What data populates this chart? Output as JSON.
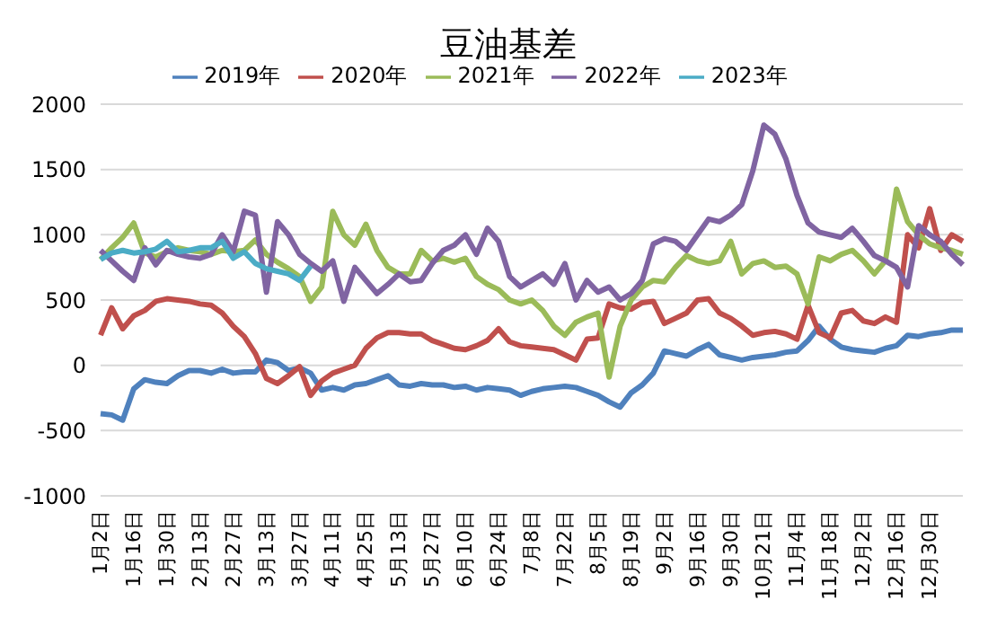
{
  "chart_data": {
    "type": "line",
    "title": "豆油基差",
    "categories": [
      "1月2日",
      null,
      null,
      "1月16日",
      null,
      null,
      "1月30日",
      null,
      null,
      "2月13日",
      null,
      null,
      "2月27日",
      null,
      null,
      "3月13日",
      null,
      null,
      "3月27日",
      null,
      null,
      "4月11日",
      null,
      null,
      "4月25日",
      null,
      null,
      "5月13日",
      null,
      null,
      "5月27日",
      null,
      null,
      "6月10日",
      null,
      null,
      "6月24日",
      null,
      null,
      "7月8日",
      null,
      null,
      "7月22日",
      null,
      null,
      "8月5日",
      null,
      null,
      "8月19日",
      null,
      null,
      "9月2日",
      null,
      null,
      "9月16日",
      null,
      null,
      "9月30日",
      null,
      null,
      "10月21日",
      null,
      null,
      "11月4日",
      null,
      null,
      "11月18日",
      null,
      null,
      "12月2日",
      null,
      null,
      "12月16日",
      null,
      null,
      "12月30日",
      null,
      null,
      null
    ],
    "series": [
      {
        "name": "2019年",
        "color": "#4f81bd",
        "values": [
          -370,
          -380,
          -420,
          -180,
          -110,
          -130,
          -140,
          -80,
          -40,
          -40,
          -60,
          -30,
          -60,
          -50,
          -50,
          40,
          20,
          -40,
          -20,
          -60,
          -190,
          -170,
          -190,
          -150,
          -140,
          -110,
          -80,
          -150,
          -160,
          -140,
          -150,
          -150,
          -170,
          -160,
          -190,
          -170,
          -180,
          -190,
          -230,
          -200,
          -180,
          -170,
          -160,
          -170,
          -200,
          -230,
          -280,
          -320,
          -210,
          -150,
          -60,
          110,
          90,
          70,
          120,
          160,
          80,
          60,
          40,
          60,
          70,
          80,
          100,
          110,
          190,
          300,
          200,
          140,
          120,
          110,
          100,
          130,
          150,
          230,
          220,
          240,
          250,
          270,
          270
        ]
      },
      {
        "name": "2020年",
        "color": "#c0504d",
        "values": [
          230,
          440,
          280,
          380,
          420,
          490,
          510,
          500,
          490,
          470,
          460,
          400,
          300,
          220,
          90,
          -100,
          -140,
          -80,
          -10,
          -230,
          -120,
          -60,
          -30,
          0,
          130,
          210,
          250,
          250,
          240,
          240,
          190,
          160,
          130,
          120,
          150,
          190,
          280,
          180,
          150,
          140,
          130,
          120,
          80,
          40,
          200,
          210,
          470,
          440,
          430,
          480,
          490,
          320,
          360,
          400,
          500,
          510,
          400,
          360,
          300,
          230,
          250,
          260,
          240,
          200,
          460,
          250,
          210,
          400,
          420,
          340,
          320,
          370,
          330,
          1000,
          900,
          1200,
          880,
          1000,
          950
        ]
      },
      {
        "name": "2021年",
        "color": "#9bbb59",
        "values": [
          810,
          900,
          980,
          1090,
          860,
          830,
          870,
          900,
          880,
          870,
          850,
          880,
          870,
          880,
          960,
          850,
          790,
          740,
          680,
          490,
          600,
          1180,
          1000,
          920,
          1080,
          880,
          750,
          700,
          700,
          880,
          800,
          820,
          790,
          820,
          680,
          620,
          580,
          500,
          470,
          500,
          420,
          300,
          230,
          330,
          370,
          400,
          -90,
          300,
          500,
          600,
          650,
          640,
          750,
          840,
          800,
          780,
          800,
          950,
          700,
          780,
          800,
          750,
          760,
          700,
          470,
          830,
          800,
          850,
          880,
          800,
          700,
          800,
          1350,
          1100,
          1000,
          930,
          900,
          880,
          850
        ]
      },
      {
        "name": "2022年",
        "color": "#8064a2",
        "values": [
          880,
          800,
          720,
          650,
          900,
          770,
          880,
          850,
          830,
          820,
          850,
          1000,
          870,
          1180,
          1150,
          560,
          1100,
          1000,
          850,
          780,
          720,
          800,
          490,
          750,
          650,
          550,
          620,
          700,
          640,
          650,
          780,
          880,
          920,
          1000,
          850,
          1050,
          950,
          680,
          600,
          650,
          700,
          620,
          780,
          500,
          650,
          560,
          600,
          500,
          550,
          650,
          930,
          970,
          950,
          880,
          1000,
          1120,
          1100,
          1150,
          1230,
          1490,
          1840,
          1770,
          1580,
          1300,
          1090,
          1020,
          1000,
          980,
          1050,
          950,
          840,
          800,
          750,
          600,
          1070,
          1000,
          950,
          850,
          770
        ]
      },
      {
        "name": "2023年",
        "color": "#4bacc6",
        "values": [
          810,
          860,
          880,
          860,
          870,
          890,
          950,
          870,
          880,
          900,
          900,
          950,
          820,
          870,
          780,
          740,
          720,
          700,
          650,
          760,
          null,
          null,
          null,
          null,
          null,
          null,
          null,
          null,
          null,
          null,
          null,
          null,
          null,
          null,
          null,
          null,
          null,
          null,
          null,
          null,
          null,
          null,
          null,
          null,
          null,
          null,
          null,
          null,
          null,
          null,
          null,
          null,
          null,
          null,
          null,
          null,
          null,
          null,
          null,
          null,
          null,
          null,
          null,
          null,
          null,
          null,
          null,
          null,
          null,
          null,
          null,
          null,
          null,
          null,
          null,
          null,
          null,
          null,
          null
        ]
      }
    ],
    "ylim": [
      -1000,
      2000
    ],
    "yticks": [
      -1000,
      -500,
      0,
      500,
      1000,
      1500,
      2000
    ],
    "grid": "y",
    "legend": "top",
    "marker": "none",
    "line_style": "solid"
  }
}
